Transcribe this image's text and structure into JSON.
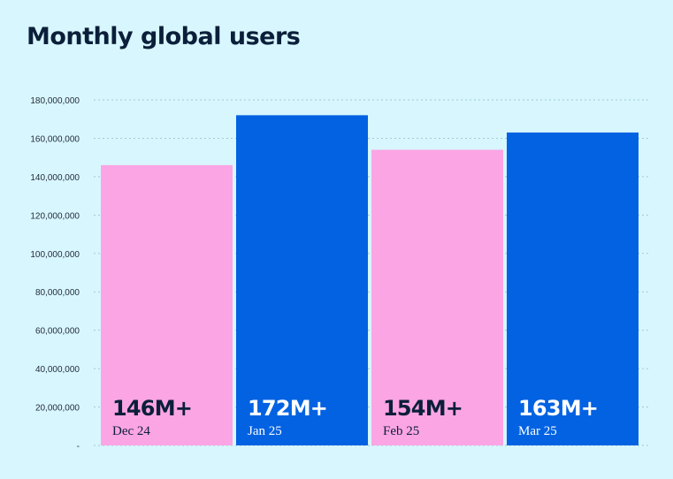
{
  "title": "Monthly global users",
  "colors": {
    "background": "#d8f6fd",
    "pink": "#fca5e4",
    "blue": "#0262e2",
    "grid": "#9ecbd6",
    "text_dark": "#0b1f3a",
    "text_light": "#ffffff"
  },
  "chart_data": {
    "type": "bar",
    "title": "Monthly global users",
    "xlabel": "",
    "ylabel": "",
    "categories": [
      "Dec 24",
      "Jan 25",
      "Feb 25",
      "Mar 25"
    ],
    "values": [
      146000000,
      172000000,
      154000000,
      163000000
    ],
    "value_labels": [
      "146M+",
      "172M+",
      "154M+",
      "163M+"
    ],
    "bar_colors": [
      "#fca5e4",
      "#0262e2",
      "#fca5e4",
      "#0262e2"
    ],
    "ylim": [
      0,
      180000000
    ],
    "yticks": [
      0,
      20000000,
      40000000,
      60000000,
      80000000,
      100000000,
      120000000,
      140000000,
      160000000,
      180000000
    ],
    "ytick_labels": [
      "-",
      "20,000,000",
      "40,000,000",
      "60,000,000",
      "80,000,000",
      "100,000,000",
      "120,000,000",
      "140,000,000",
      "160,000,000",
      "180,000,000"
    ],
    "grid": true,
    "grid_style": "dotted",
    "legend": "none"
  }
}
